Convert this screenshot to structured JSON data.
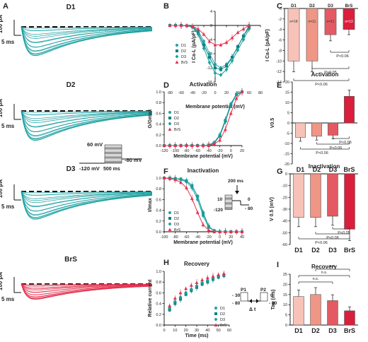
{
  "colors": {
    "teal": "#1a9ea0",
    "d1": "#2aa4a6",
    "d2": "#0f7f86",
    "d3": "#17a29a",
    "brs": "#e2334f",
    "bar_d1": "#f7c3b8",
    "bar_d2": "#ef9686",
    "bar_d3": "#e45a62",
    "bar_brs": "#d91f3c",
    "text": "#222222"
  },
  "traces": {
    "D1": {
      "title": "D1",
      "scale_pa": "100 pA",
      "scale_ms": "5 ms"
    },
    "D2": {
      "title": "D2",
      "scale_pa": "100 pA",
      "scale_ms": "5 ms",
      "protocol": {
        "v_test": "60 mV",
        "v_hold": "-120 mV",
        "v_tail": "-80 mV",
        "dur": "500 ms"
      }
    },
    "D3": {
      "title": "D3",
      "scale_pa": "100 pA",
      "scale_ms": "5 ms"
    },
    "BrS": {
      "title": "BrS",
      "scale_pa": "100 pA",
      "scale_ms": "5 ms"
    }
  },
  "panels": {
    "A": "A",
    "B": "B",
    "C": "C",
    "D": "D",
    "E": "E",
    "F": "F",
    "G": "G",
    "H": "H",
    "I": "I"
  },
  "chart_data": [
    {
      "panel": "B",
      "type": "line",
      "ylabel": "I Ca-L (pA/pF)",
      "xlabel": "Membrane potential (mV)",
      "xlim": [
        -80,
        80
      ],
      "ylim": [
        -16,
        4
      ],
      "xticks": [
        "-80",
        "-60",
        "-40",
        "-20",
        "0",
        "20",
        "40",
        "60",
        "80"
      ],
      "yticks": [
        "4",
        "0",
        "-4",
        "-8",
        "-12",
        "-16"
      ],
      "x": [
        -80,
        -70,
        -60,
        -50,
        -40,
        -30,
        -20,
        -10,
        0,
        10,
        20,
        30,
        40,
        50,
        60
      ],
      "series": [
        {
          "name": "D1",
          "values": [
            0,
            0,
            0,
            -0.1,
            -0.3,
            -1.5,
            -4.5,
            -8,
            -11,
            -12,
            -11,
            -9,
            -6,
            -3,
            0
          ]
        },
        {
          "name": "D2",
          "values": [
            0,
            0,
            0,
            -0.1,
            -0.4,
            -2,
            -5.5,
            -9,
            -12,
            -12.5,
            -11.5,
            -9,
            -6,
            -3,
            -0.5
          ]
        },
        {
          "name": "D3",
          "values": [
            0,
            0,
            0,
            -0.1,
            -0.5,
            -2.5,
            -6.5,
            -10.5,
            -13.5,
            -14,
            -12.5,
            -10,
            -7,
            -4,
            -1
          ]
        },
        {
          "name": "BrS",
          "values": [
            0,
            0,
            0,
            0,
            -0.2,
            -1,
            -2.5,
            -4.5,
            -5.5,
            -5.5,
            -4.8,
            -3.5,
            -2,
            -1,
            0
          ]
        }
      ]
    },
    {
      "panel": "C",
      "type": "bar",
      "ylabel": "I Ca-L (pA/pF)",
      "categories": [
        "D1",
        "D2",
        "D3",
        "BrS"
      ],
      "values": [
        -10,
        -10,
        -5,
        -4
      ],
      "n_labels": [
        "n=18",
        "n=11",
        "n=11",
        "n=13"
      ],
      "ylim": [
        -14,
        0
      ],
      "yticks": [
        "0",
        "-2",
        "-4",
        "-6",
        "-8",
        "-10",
        "-12",
        "-14"
      ],
      "annotations": [
        "P<0.06",
        "P<0.05",
        "P<0.06"
      ]
    },
    {
      "panel": "D",
      "type": "line",
      "title": "Activation",
      "ylabel": "G/Gmax",
      "xlabel": "Membrane potential (mV)",
      "xlim": [
        -120,
        20
      ],
      "ylim": [
        0,
        1
      ],
      "xticks": [
        "-120",
        "-100",
        "-80",
        "-60",
        "-40",
        "-20",
        "0",
        "20"
      ],
      "yticks": [
        "0.0",
        "0.2",
        "0.4",
        "0.6",
        "0.8",
        "1.0"
      ],
      "x": [
        -120,
        -110,
        -100,
        -90,
        -80,
        -70,
        -60,
        -50,
        -40,
        -30,
        -20,
        -10,
        0,
        10,
        20
      ],
      "series": [
        {
          "name": "D1",
          "values": [
            0,
            0,
            0,
            0,
            0,
            0,
            0,
            0,
            0.01,
            0.05,
            0.18,
            0.45,
            0.75,
            0.95,
            1.0
          ]
        },
        {
          "name": "D2",
          "values": [
            0,
            0,
            0,
            0,
            0,
            0,
            0,
            0,
            0.01,
            0.05,
            0.18,
            0.46,
            0.76,
            0.95,
            1.0
          ]
        },
        {
          "name": "D3",
          "values": [
            0,
            0,
            0,
            0,
            0,
            0,
            0,
            0,
            0.01,
            0.06,
            0.2,
            0.48,
            0.78,
            0.96,
            1.0
          ]
        },
        {
          "name": "BrS",
          "values": [
            0,
            0,
            0,
            0,
            0,
            0,
            0,
            0,
            0,
            0.03,
            0.1,
            0.3,
            0.6,
            0.88,
            1.0
          ]
        }
      ]
    },
    {
      "panel": "E",
      "type": "bar",
      "title": "Activation",
      "ylabel": "V0.5",
      "categories": [
        "D1",
        "D2",
        "D3",
        "BrS"
      ],
      "values": [
        -7,
        -6.5,
        -6,
        13
      ],
      "ylim": [
        -20,
        20
      ],
      "yticks": [
        "20",
        "15",
        "10",
        "5",
        "0",
        "-5",
        "-10",
        "-15",
        "-20"
      ],
      "annotations": [
        "P<0.05",
        "P<0.06",
        "P<0.06"
      ]
    },
    {
      "panel": "F",
      "type": "line",
      "title": "Inactivation",
      "ylabel": "I/Imax",
      "xlabel": "Membrane potential (mV)",
      "xlim": [
        -100,
        40
      ],
      "ylim": [
        0,
        1
      ],
      "xticks": [
        "-100",
        "-80",
        "-60",
        "-40",
        "-20",
        "0",
        "20",
        "40"
      ],
      "yticks": [
        "0.0",
        "0.2",
        "0.4",
        "0.6",
        "0.8",
        "1.0"
      ],
      "x": [
        -100,
        -90,
        -80,
        -70,
        -60,
        -50,
        -40,
        -30,
        -20,
        -10,
        0,
        10,
        20,
        30,
        40
      ],
      "series": [
        {
          "name": "D1",
          "values": [
            1,
            1,
            0.99,
            0.97,
            0.93,
            0.82,
            0.6,
            0.3,
            0.08,
            0.02,
            0,
            0,
            0,
            0,
            0
          ]
        },
        {
          "name": "D2",
          "values": [
            1,
            1,
            0.99,
            0.98,
            0.95,
            0.86,
            0.66,
            0.35,
            0.1,
            0.02,
            0,
            0,
            0,
            0,
            0
          ]
        },
        {
          "name": "D3",
          "values": [
            1,
            1,
            0.99,
            0.98,
            0.95,
            0.86,
            0.66,
            0.36,
            0.1,
            0.02,
            0,
            0,
            0,
            0,
            0
          ]
        },
        {
          "name": "BrS",
          "values": [
            1,
            0.99,
            0.97,
            0.92,
            0.82,
            0.62,
            0.36,
            0.13,
            0.03,
            0,
            0,
            0,
            0,
            0,
            0
          ]
        }
      ],
      "protocol": {
        "duration": "200 ms",
        "v_top": "10",
        "v_bottom": "-120",
        "v_test": "0",
        "v_hold": "- 80"
      }
    },
    {
      "panel": "G",
      "type": "bar",
      "title": "Inactivation",
      "ylabel": "V 0.5 (mV)",
      "categories": [
        "D1",
        "D2",
        "D3",
        "BrS"
      ],
      "values": [
        -37,
        -37,
        -36,
        -47
      ],
      "ylim": [
        -60,
        0
      ],
      "yticks": [
        "0",
        "-10",
        "-20",
        "-30",
        "-40",
        "-50",
        "-60"
      ],
      "annotations": [
        "P<0.05",
        "P<0.06",
        "P<0.06"
      ]
    },
    {
      "panel": "H",
      "type": "scatter",
      "title": "Recovery",
      "ylabel": "Relative current",
      "xlabel": "Time (ms)",
      "xlim": [
        0,
        60
      ],
      "ylim": [
        0,
        1
      ],
      "xticks": [
        "0",
        "10",
        "20",
        "30",
        "40",
        "50",
        "60"
      ],
      "yticks": [
        "0.0",
        "0.2",
        "0.4",
        "0.6",
        "0.8",
        "1.0"
      ],
      "x": [
        5,
        10,
        15,
        20,
        25,
        30,
        35,
        40,
        45,
        50,
        55
      ],
      "series": [
        {
          "name": "D1",
          "values": [
            0.3,
            0.42,
            0.5,
            0.6,
            0.66,
            0.72,
            0.78,
            0.82,
            0.86,
            0.9,
            0.93
          ]
        },
        {
          "name": "D2",
          "values": [
            0.28,
            0.4,
            0.48,
            0.57,
            0.64,
            0.7,
            0.76,
            0.8,
            0.85,
            0.89,
            0.92
          ]
        },
        {
          "name": "D3",
          "values": [
            0.32,
            0.44,
            0.52,
            0.6,
            0.67,
            0.73,
            0.79,
            0.83,
            0.87,
            0.91,
            0.94
          ]
        },
        {
          "name": "BrS",
          "values": [
            0.36,
            0.5,
            0.6,
            0.68,
            0.74,
            0.79,
            0.84,
            0.88,
            0.91,
            0.94,
            0.96
          ]
        }
      ],
      "protocol": {
        "p1": "P1",
        "p2": "P2",
        "v1": "- 30",
        "v2": "- 80",
        "v3": "0",
        "v4": "- 80",
        "dt": "Δ t"
      }
    },
    {
      "panel": "I",
      "type": "bar",
      "title": "Recovery",
      "ylabel": "Tau (ms)",
      "categories": [
        "D1",
        "D2",
        "D3",
        "BrS"
      ],
      "values": [
        14,
        15,
        12,
        7
      ],
      "ylim": [
        0,
        25
      ],
      "yticks": [
        "0",
        "5",
        "10",
        "15",
        "20",
        "25"
      ],
      "annotations": [
        "n.s.",
        "n.s.",
        "n.s."
      ]
    }
  ]
}
